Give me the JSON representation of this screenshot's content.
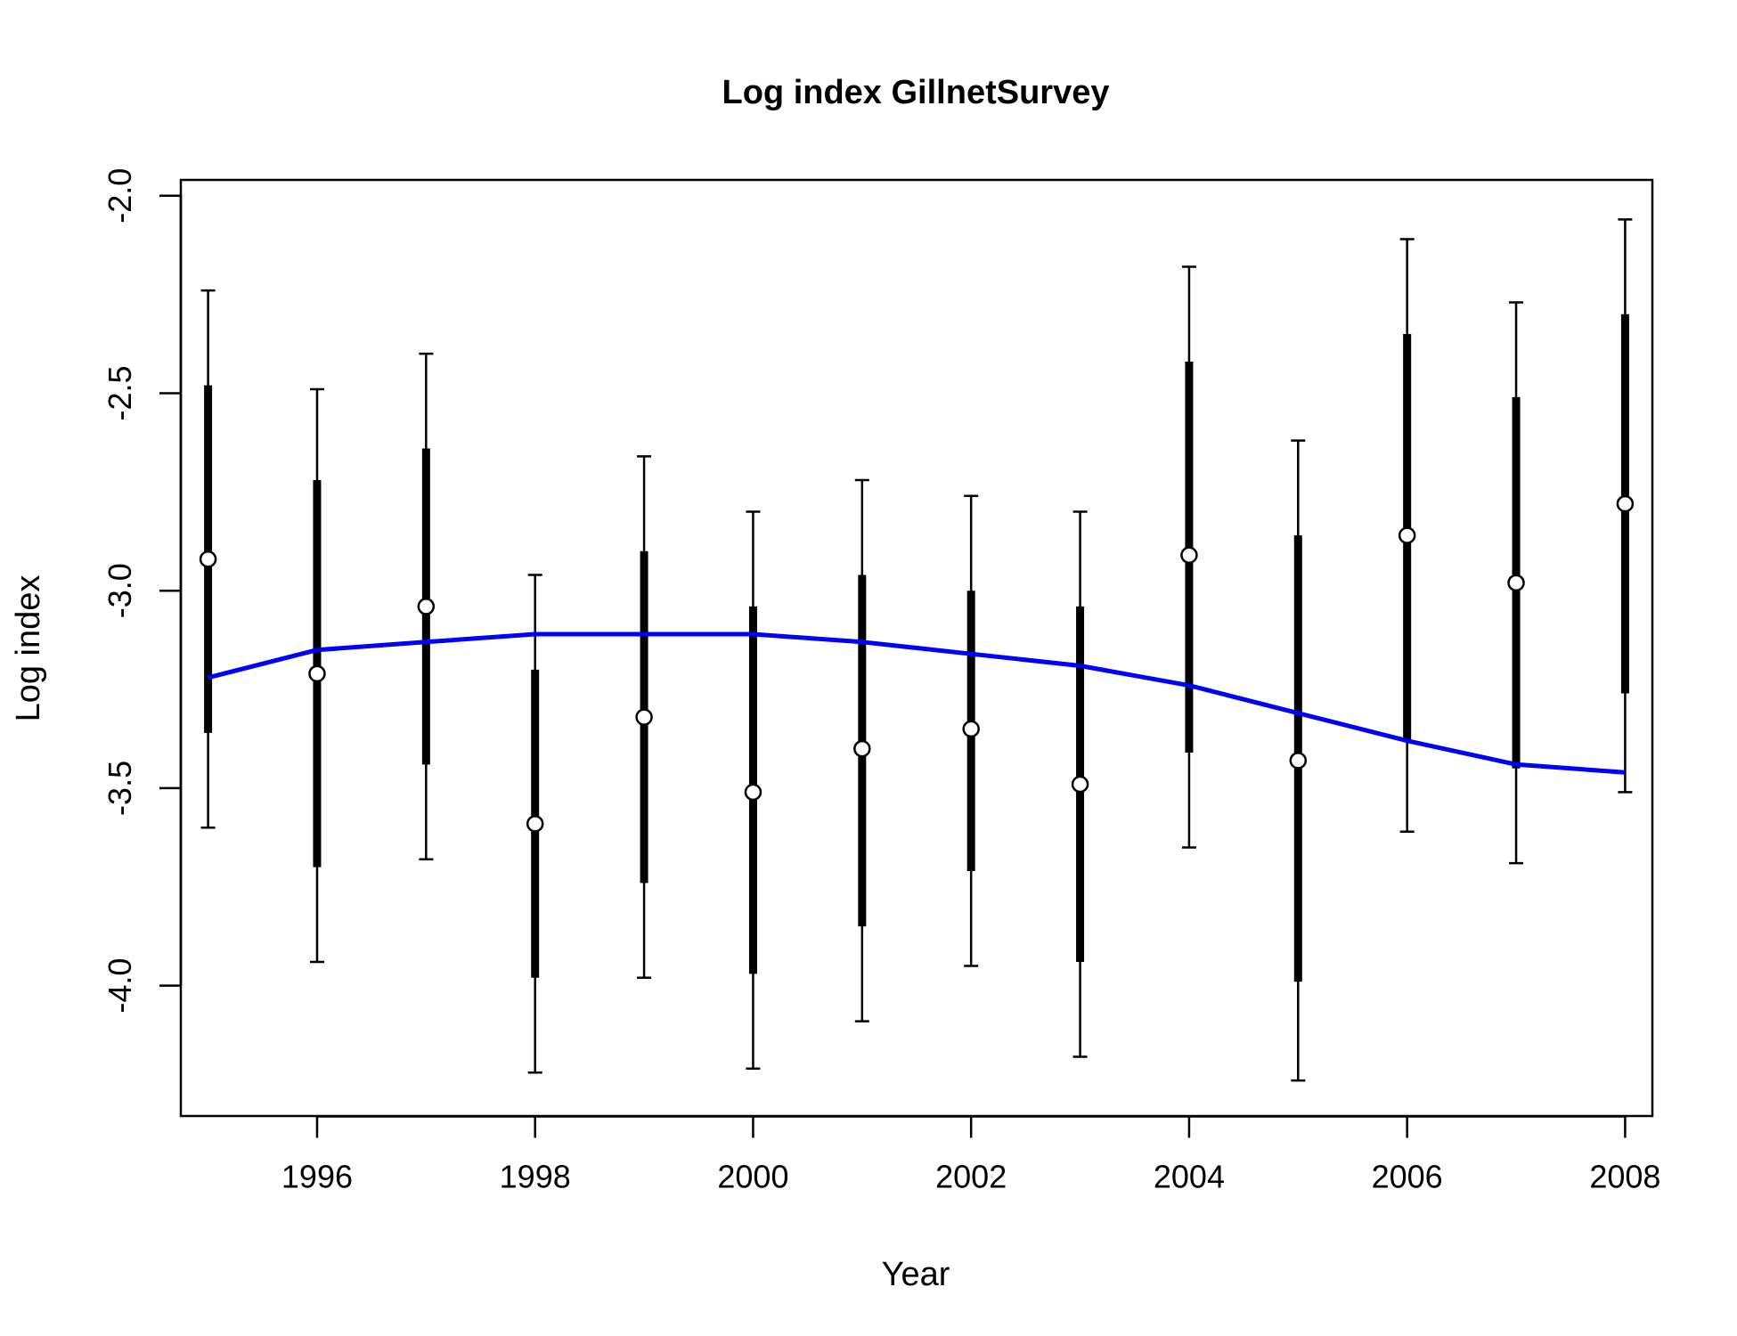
{
  "chart_data": {
    "type": "line",
    "title": "Log index GillnetSurvey",
    "xlabel": "Year",
    "ylabel": "Log index",
    "xlim": [
      1994.75,
      2008.25
    ],
    "ylim": [
      -4.33,
      -1.96
    ],
    "x_ticks": [
      1996,
      1998,
      2000,
      2002,
      2004,
      2006,
      2008
    ],
    "x_tick_labels": [
      "1996",
      "1998",
      "2000",
      "2002",
      "2004",
      "2006",
      "2008"
    ],
    "y_ticks": [
      -4.0,
      -3.5,
      -3.0,
      -2.5,
      -2.0
    ],
    "y_tick_labels": [
      "-4.0",
      "-3.5",
      "-3.0",
      "-2.5",
      "-2.0"
    ],
    "grid": false,
    "legend": "none",
    "colors": {
      "fitted": "#0000ff",
      "observed": "#000000",
      "point_fill": "#ffffff"
    },
    "observed": {
      "x": [
        1995,
        1996,
        1997,
        1998,
        1999,
        2000,
        2001,
        2002,
        2003,
        2004,
        2005,
        2006,
        2007,
        2008
      ],
      "y": [
        -2.92,
        -3.21,
        -3.04,
        -3.59,
        -3.32,
        -3.51,
        -3.4,
        -3.35,
        -3.49,
        -2.91,
        -3.43,
        -2.86,
        -2.98,
        -2.78
      ],
      "inner_low": [
        -3.36,
        -3.7,
        -3.44,
        -3.98,
        -3.74,
        -3.97,
        -3.85,
        -3.71,
        -3.94,
        -3.41,
        -3.99,
        -3.38,
        -3.45,
        -3.26
      ],
      "inner_high": [
        -2.48,
        -2.72,
        -2.64,
        -3.2,
        -2.9,
        -3.04,
        -2.96,
        -3.0,
        -3.04,
        -2.42,
        -2.86,
        -2.35,
        -2.51,
        -2.3
      ],
      "outer_low": [
        -3.6,
        -3.94,
        -3.68,
        -4.22,
        -3.98,
        -4.21,
        -4.09,
        -3.95,
        -4.18,
        -3.65,
        -4.24,
        -3.61,
        -3.69,
        -3.51
      ],
      "outer_high": [
        -2.24,
        -2.49,
        -2.4,
        -2.96,
        -2.66,
        -2.8,
        -2.72,
        -2.76,
        -2.8,
        -2.18,
        -2.62,
        -2.11,
        -2.27,
        -2.06
      ]
    },
    "fitted": {
      "x": [
        1995,
        1996,
        1997,
        1998,
        1999,
        2000,
        2001,
        2002,
        2003,
        2004,
        2005,
        2006,
        2007,
        2008
      ],
      "y": [
        -3.22,
        -3.15,
        -3.13,
        -3.11,
        -3.11,
        -3.11,
        -3.13,
        -3.16,
        -3.19,
        -3.24,
        -3.31,
        -3.38,
        -3.44,
        -3.46
      ]
    }
  }
}
